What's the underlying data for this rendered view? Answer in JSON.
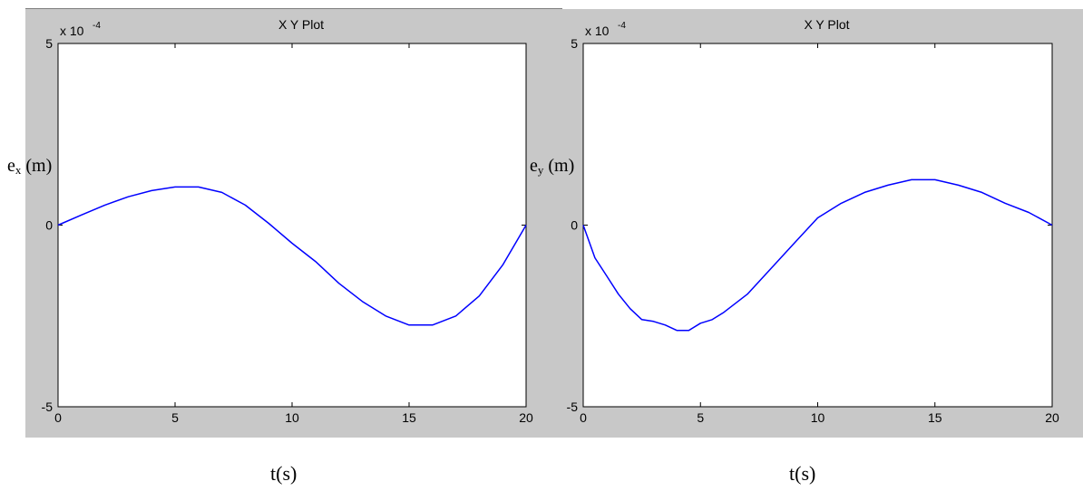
{
  "chart_data": [
    {
      "type": "line",
      "title": "X Y Plot",
      "xlabel": "t(s)",
      "ylabel_base": "e",
      "ylabel_sub": "x",
      "ylabel_unit": " (m)",
      "y_exponent_prefix": "x 10",
      "y_exponent_power": "-4",
      "xlim": [
        0,
        20
      ],
      "ylim": [
        -5,
        5
      ],
      "xticks": [
        0,
        5,
        10,
        15,
        20
      ],
      "yticks": [
        -5,
        0,
        5
      ],
      "xtick_labels": [
        "0",
        "5",
        "10",
        "15",
        "20"
      ],
      "ytick_labels": [
        "-5",
        "0",
        "5"
      ],
      "grid": false,
      "series": [
        {
          "color": "#0000ff",
          "x": [
            0,
            1,
            2,
            3,
            4,
            5,
            6,
            7,
            8,
            9,
            10,
            11,
            12,
            13,
            14,
            15,
            16,
            17,
            18,
            19,
            20
          ],
          "y": [
            0,
            0.28,
            0.55,
            0.78,
            0.95,
            1.05,
            1.05,
            0.9,
            0.55,
            0.05,
            -0.5,
            -1.0,
            -1.6,
            -2.1,
            -2.5,
            -2.75,
            -2.75,
            -2.5,
            -1.95,
            -1.1,
            0
          ]
        }
      ]
    },
    {
      "type": "line",
      "title": "X Y Plot",
      "xlabel": "t(s)",
      "ylabel_base": "e",
      "ylabel_sub": "y",
      "ylabel_unit": " (m)",
      "y_exponent_prefix": "x 10",
      "y_exponent_power": "-4",
      "xlim": [
        0,
        20
      ],
      "ylim": [
        -5,
        5
      ],
      "xticks": [
        0,
        5,
        10,
        15,
        20
      ],
      "yticks": [
        -5,
        0,
        5
      ],
      "xtick_labels": [
        "0",
        "5",
        "10",
        "15",
        "20"
      ],
      "ytick_labels": [
        "-5",
        "0",
        "5"
      ],
      "grid": false,
      "series": [
        {
          "color": "#0000ff",
          "x": [
            0,
            0.5,
            1,
            1.5,
            2,
            2.5,
            3,
            3.5,
            4,
            4.5,
            5,
            5.5,
            6,
            7,
            8,
            9,
            10,
            11,
            12,
            13,
            14,
            15,
            16,
            17,
            18,
            19,
            20
          ],
          "y": [
            0,
            -0.9,
            -1.4,
            -1.9,
            -2.3,
            -2.6,
            -2.65,
            -2.75,
            -2.9,
            -2.9,
            -2.7,
            -2.6,
            -2.4,
            -1.9,
            -1.2,
            -0.5,
            0.2,
            0.6,
            0.9,
            1.1,
            1.25,
            1.25,
            1.1,
            0.9,
            0.6,
            0.35,
            0
          ]
        }
      ]
    }
  ]
}
